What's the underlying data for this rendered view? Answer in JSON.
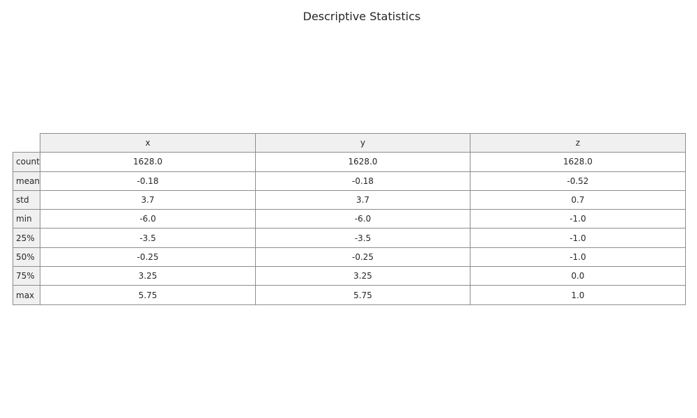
{
  "chart_data": {
    "type": "table",
    "title": "Descriptive Statistics",
    "columns": [
      "x",
      "y",
      "z"
    ],
    "rows": [
      {
        "label": "count",
        "values": [
          "1628.0",
          "1628.0",
          "1628.0"
        ]
      },
      {
        "label": "mean",
        "values": [
          "-0.18",
          "-0.18",
          "-0.52"
        ]
      },
      {
        "label": "std",
        "values": [
          "3.7",
          "3.7",
          "0.7"
        ]
      },
      {
        "label": "min",
        "values": [
          "-6.0",
          "-6.0",
          "-1.0"
        ]
      },
      {
        "label": "25%",
        "values": [
          "-3.5",
          "-3.5",
          "-1.0"
        ]
      },
      {
        "label": "50%",
        "values": [
          "-0.25",
          "-0.25",
          "-1.0"
        ]
      },
      {
        "label": "75%",
        "values": [
          "3.25",
          "3.25",
          "0.0"
        ]
      },
      {
        "label": "max",
        "values": [
          "5.75",
          "5.75",
          "1.0"
        ]
      }
    ],
    "colors": {
      "header_bg": "#f0f0f0",
      "cell_bg": "#ffffff",
      "border": "#8c8c8c",
      "text": "#262626"
    }
  }
}
